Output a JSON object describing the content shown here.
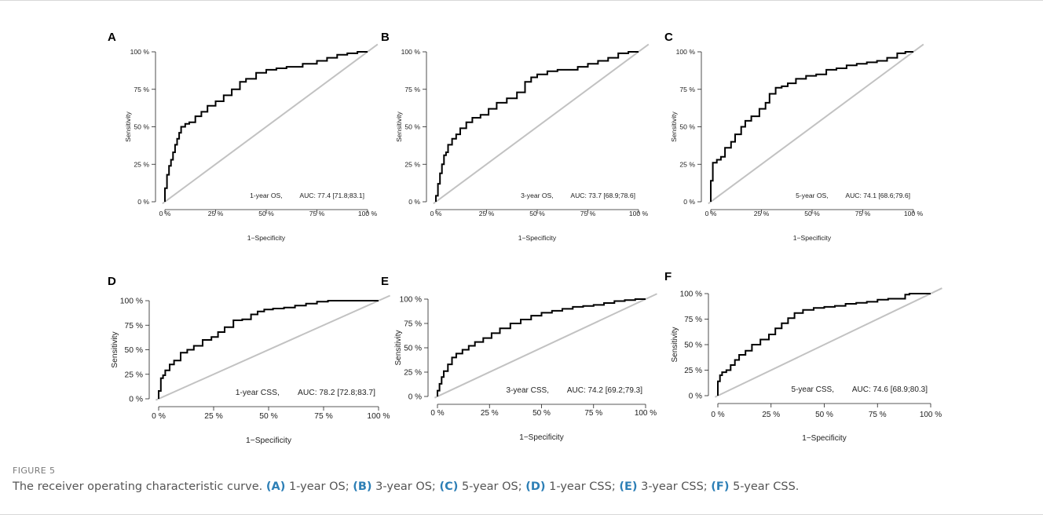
{
  "figure": {
    "label": "FIGURE 5",
    "caption_parts": [
      {
        "text": "The receiver operating characteristic curve. ",
        "ref": false
      },
      {
        "text": "(A)",
        "ref": true
      },
      {
        "text": " 1-year OS; ",
        "ref": false
      },
      {
        "text": "(B)",
        "ref": true
      },
      {
        "text": " 3-year OS; ",
        "ref": false
      },
      {
        "text": "(C)",
        "ref": true
      },
      {
        "text": " 5-year OS; ",
        "ref": false
      },
      {
        "text": "(D)",
        "ref": true
      },
      {
        "text": " 1-year CSS; ",
        "ref": false
      },
      {
        "text": "(E)",
        "ref": true
      },
      {
        "text": " 3-year CSS; ",
        "ref": false
      },
      {
        "text": "(F)",
        "ref": true
      },
      {
        "text": " 5-year CSS.",
        "ref": false
      }
    ],
    "caption_ref_color": "#2d7fb6"
  },
  "chart_data": [
    {
      "panel": "A",
      "type": "line",
      "xlabel": "1−Specificity",
      "ylabel": "Sensitivity",
      "xticks": [
        "0 %",
        "25 %",
        "50 %",
        "75 %",
        "100 %"
      ],
      "yticks": [
        "0 %",
        "25 %",
        "50 %",
        "75 %",
        "100 %"
      ],
      "xlim": [
        0,
        100
      ],
      "ylim": [
        0,
        100
      ],
      "annotation_label": "1-year OS,",
      "annotation_auc": "AUC: 77.4 [71.8;83.1]",
      "reference_line": [
        [
          0,
          0
        ],
        [
          100,
          100
        ]
      ],
      "x": [
        0,
        1,
        2,
        3,
        4,
        5,
        6,
        7,
        8,
        10,
        12,
        15,
        18,
        21,
        25,
        29,
        33,
        37,
        40,
        43,
        45,
        50,
        55,
        60,
        68,
        75,
        80,
        85,
        90,
        95,
        100
      ],
      "y": [
        0,
        9,
        18,
        24,
        28,
        33,
        38,
        42,
        46,
        50,
        52,
        53,
        57,
        60,
        64,
        67,
        71,
        75,
        80,
        82,
        82,
        86,
        88,
        89,
        90,
        92,
        94,
        96,
        98,
        99,
        100
      ]
    },
    {
      "panel": "B",
      "type": "line",
      "xlabel": "1−Specificity",
      "ylabel": "Sensitivity",
      "xticks": [
        "0 %",
        "25 %",
        "50 %",
        "75 %",
        "100 %"
      ],
      "yticks": [
        "0 %",
        "25 %",
        "50 %",
        "75 %",
        "100 %"
      ],
      "xlim": [
        0,
        100
      ],
      "ylim": [
        0,
        100
      ],
      "annotation_label": "3-year OS,",
      "annotation_auc": "AUC: 73.7 [68.9;78.6]",
      "reference_line": [
        [
          0,
          0
        ],
        [
          100,
          100
        ]
      ],
      "x": [
        0,
        1,
        2,
        3,
        4,
        5,
        6,
        8,
        10,
        12,
        15,
        18,
        22,
        26,
        30,
        35,
        40,
        44,
        47,
        50,
        55,
        60,
        65,
        70,
        75,
        80,
        85,
        90,
        95,
        100
      ],
      "y": [
        0,
        4,
        12,
        19,
        25,
        31,
        33,
        38,
        42,
        45,
        49,
        53,
        56,
        58,
        62,
        66,
        69,
        73,
        80,
        83,
        85,
        87,
        88,
        88,
        90,
        92,
        94,
        96,
        99,
        100
      ]
    },
    {
      "panel": "C",
      "type": "line",
      "xlabel": "1−Specificity",
      "ylabel": "Sensitivity",
      "xticks": [
        "0 %",
        "25 %",
        "50 %",
        "75 %",
        "100 %"
      ],
      "yticks": [
        "0 %",
        "25 %",
        "50 %",
        "75 %",
        "100 %"
      ],
      "xlim": [
        0,
        100
      ],
      "ylim": [
        0,
        100
      ],
      "annotation_label": "5-year OS,",
      "annotation_auc": "AUC: 74.1 [68.6;79.6]",
      "reference_line": [
        [
          0,
          0
        ],
        [
          100,
          100
        ]
      ],
      "x": [
        0,
        0,
        1,
        1,
        3,
        5,
        7,
        10,
        12,
        15,
        17,
        20,
        24,
        27,
        29,
        32,
        35,
        38,
        42,
        47,
        52,
        57,
        62,
        67,
        72,
        77,
        82,
        87,
        92,
        96,
        100
      ],
      "y": [
        0,
        14,
        14,
        25,
        26,
        28,
        30,
        36,
        40,
        45,
        50,
        54,
        57,
        62,
        66,
        72,
        76,
        77,
        79,
        82,
        84,
        85,
        88,
        89,
        91,
        92,
        93,
        94,
        96,
        99,
        100
      ]
    },
    {
      "panel": "D",
      "type": "line",
      "xlabel": "1−Specificity",
      "ylabel": "Sensitivity",
      "xticks": [
        "0 %",
        "25 %",
        "50 %",
        "75 %",
        "100 %"
      ],
      "yticks": [
        "0 %",
        "25 %",
        "50 %",
        "75 %",
        "100 %"
      ],
      "xlim": [
        0,
        100
      ],
      "ylim": [
        0,
        100
      ],
      "annotation_label": "1-year CSS,",
      "annotation_auc": "AUC: 78.2 [72.8;83.7]",
      "reference_line": [
        [
          0,
          0
        ],
        [
          100,
          100
        ]
      ],
      "x": [
        0,
        1,
        1,
        2,
        3,
        5,
        7,
        10,
        13,
        16,
        20,
        24,
        27,
        30,
        34,
        38,
        42,
        45,
        48,
        52,
        57,
        62,
        67,
        72,
        77,
        82,
        87,
        93,
        100
      ],
      "y": [
        0,
        8,
        15,
        21,
        24,
        29,
        35,
        39,
        47,
        50,
        54,
        60,
        63,
        68,
        73,
        80,
        81,
        86,
        89,
        91,
        92,
        93,
        95,
        97,
        99,
        100,
        100,
        100,
        100
      ]
    },
    {
      "panel": "E",
      "type": "line",
      "xlabel": "1−Specificity",
      "ylabel": "Sensitivity",
      "xticks": [
        "0 %",
        "25 %",
        "50 %",
        "75 %",
        "100 %"
      ],
      "yticks": [
        "0 %",
        "25 %",
        "50 %",
        "75 %",
        "100 %"
      ],
      "xlim": [
        0,
        100
      ],
      "ylim": [
        0,
        100
      ],
      "annotation_label": "3-year CSS,",
      "annotation_auc": "AUC: 74.2 [69.2;79.3]",
      "reference_line": [
        [
          0,
          0
        ],
        [
          100,
          100
        ]
      ],
      "x": [
        0,
        1,
        2,
        3,
        5,
        7,
        9,
        12,
        15,
        18,
        22,
        26,
        30,
        35,
        40,
        45,
        50,
        55,
        60,
        65,
        70,
        75,
        80,
        85,
        90,
        95,
        100
      ],
      "y": [
        0,
        6,
        13,
        20,
        26,
        33,
        40,
        44,
        48,
        52,
        56,
        60,
        65,
        70,
        75,
        79,
        83,
        86,
        88,
        90,
        92,
        93,
        94,
        96,
        98,
        99,
        100
      ]
    },
    {
      "panel": "F",
      "type": "line",
      "xlabel": "1−Specificity",
      "ylabel": "Sensitivity",
      "xticks": [
        "0 %",
        "25 %",
        "50 %",
        "75 %",
        "100 %"
      ],
      "yticks": [
        "0 %",
        "25 %",
        "50 %",
        "75 %",
        "100 %"
      ],
      "xlim": [
        0,
        100
      ],
      "ylim": [
        0,
        100
      ],
      "annotation_label": "5-year CSS,",
      "annotation_auc": "AUC: 74.6 [68.9;80.3]",
      "reference_line": [
        [
          0,
          0
        ],
        [
          100,
          100
        ]
      ],
      "x": [
        0,
        0,
        1,
        1,
        2,
        4,
        6,
        8,
        10,
        13,
        16,
        20,
        24,
        27,
        30,
        33,
        36,
        40,
        45,
        50,
        55,
        60,
        65,
        70,
        75,
        80,
        85,
        88,
        90,
        92,
        96,
        100
      ],
      "y": [
        0,
        14,
        14,
        17,
        20,
        23,
        25,
        30,
        35,
        40,
        44,
        50,
        55,
        60,
        66,
        71,
        76,
        81,
        84,
        86,
        87,
        88,
        90,
        91,
        92,
        94,
        95,
        95,
        99,
        100,
        100,
        100
      ]
    }
  ]
}
